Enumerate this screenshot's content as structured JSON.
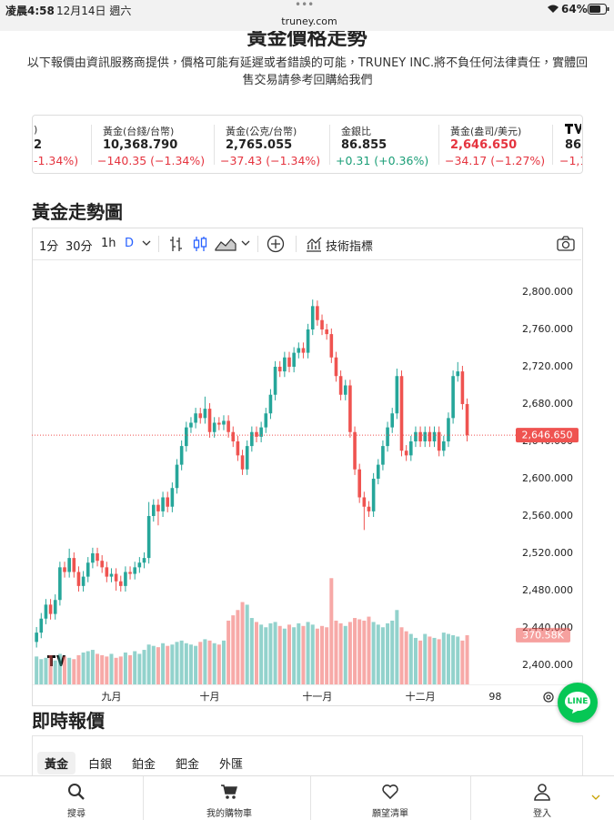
{
  "status_bar": {
    "time": "凌晨4:58",
    "date": "12月14日 週六",
    "url": "truney.com",
    "battery": "64%"
  },
  "header": {
    "title": "黃金價格走勢",
    "disclaimer": "以下報價由資訊服務商提供，價格可能有延遲或者錯誤的可能，TRUNEY INC.將不負任何法律責任，實體回售交易請參考回購給我們"
  },
  "ticker": [
    {
      "name": ")",
      "price": "2",
      "change": "-1.34%)"
    },
    {
      "name": "黃金(台錢/台幣)",
      "price": "10,368.790",
      "change": "−140.35 (−1.34%)"
    },
    {
      "name": "黃金(公克/台幣)",
      "price": "2,765.055",
      "change": "−37.43 (−1.34%)"
    },
    {
      "name": "金銀比",
      "price": "86.855",
      "change": "+0.31 (+0.36%)"
    },
    {
      "name": "黃金(盎司/美元)",
      "price": "2,646.650",
      "change": "−34.17 (−1.27%)"
    },
    {
      "price": "86",
      "change": "−1,1"
    }
  ],
  "chart_section_title": "黃金走勢圖",
  "toolbar": {
    "intervals": [
      "1分",
      "30分",
      "1h",
      "D"
    ],
    "indicators": "技術指標"
  },
  "chart_data": {
    "type": "candlestick",
    "up_color": "#26a69a",
    "down_color": "#ef5350",
    "open": [
      2425,
      2435,
      2450,
      2465,
      2455,
      2470,
      2505,
      2500,
      2515,
      2500,
      2485,
      2495,
      2510,
      2520,
      2512,
      2505,
      2495,
      2498,
      2490,
      2485,
      2500,
      2498,
      2505,
      2510,
      2515,
      2560,
      2572,
      2565,
      2580,
      2570,
      2590,
      2615,
      2635,
      2655,
      2660,
      2670,
      2665,
      2675,
      2650,
      2660,
      2658,
      2662,
      2650,
      2640,
      2625,
      2610,
      2635,
      2650,
      2645,
      2655,
      2670,
      2690,
      2720,
      2715,
      2730,
      2720,
      2735,
      2740,
      2735,
      2760,
      2785,
      2770,
      2760,
      2755,
      2730,
      2710,
      2690,
      2700,
      2650,
      2610,
      2580,
      2570,
      2565,
      2600,
      2615,
      2635,
      2655,
      2670,
      2710,
      2630,
      2625,
      2640,
      2650,
      2640,
      2650,
      2640,
      2650,
      2630,
      2640,
      2665,
      2710,
      2715,
      2680
    ],
    "high": [
      2441,
      2456,
      2471,
      2471,
      2476,
      2511,
      2511,
      2525,
      2521,
      2506,
      2501,
      2516,
      2526,
      2526,
      2518,
      2511,
      2504,
      2504,
      2496,
      2506,
      2506,
      2511,
      2516,
      2521,
      2575,
      2578,
      2578,
      2586,
      2586,
      2596,
      2621,
      2641,
      2661,
      2666,
      2676,
      2676,
      2688,
      2681,
      2666,
      2666,
      2668,
      2668,
      2656,
      2646,
      2631,
      2641,
      2656,
      2656,
      2661,
      2676,
      2696,
      2726,
      2726,
      2736,
      2736,
      2741,
      2746,
      2746,
      2766,
      2792,
      2791,
      2776,
      2766,
      2761,
      2736,
      2716,
      2706,
      2706,
      2656,
      2616,
      2586,
      2576,
      2606,
      2621,
      2641,
      2661,
      2676,
      2718,
      2716,
      2636,
      2646,
      2656,
      2656,
      2656,
      2656,
      2656,
      2656,
      2646,
      2671,
      2716,
      2725,
      2721,
      2686
    ],
    "low": [
      2419,
      2429,
      2444,
      2449,
      2449,
      2464,
      2494,
      2494,
      2494,
      2479,
      2479,
      2489,
      2504,
      2506,
      2499,
      2489,
      2489,
      2480,
      2479,
      2479,
      2492,
      2492,
      2499,
      2504,
      2509,
      2554,
      2550,
      2559,
      2564,
      2564,
      2584,
      2609,
      2629,
      2649,
      2654,
      2659,
      2659,
      2644,
      2644,
      2652,
      2652,
      2644,
      2634,
      2619,
      2604,
      2604,
      2629,
      2639,
      2639,
      2649,
      2664,
      2684,
      2709,
      2709,
      2714,
      2714,
      2729,
      2729,
      2729,
      2754,
      2764,
      2754,
      2749,
      2724,
      2704,
      2684,
      2684,
      2644,
      2604,
      2574,
      2545,
      2559,
      2559,
      2594,
      2609,
      2629,
      2649,
      2664,
      2624,
      2619,
      2619,
      2634,
      2634,
      2634,
      2634,
      2634,
      2624,
      2624,
      2634,
      2659,
      2704,
      2674,
      2640
    ],
    "close": [
      2435,
      2450,
      2465,
      2455,
      2470,
      2505,
      2500,
      2515,
      2500,
      2485,
      2495,
      2510,
      2520,
      2512,
      2505,
      2495,
      2498,
      2490,
      2485,
      2500,
      2498,
      2505,
      2510,
      2515,
      2560,
      2572,
      2565,
      2580,
      2570,
      2590,
      2615,
      2635,
      2655,
      2660,
      2670,
      2665,
      2675,
      2650,
      2660,
      2658,
      2662,
      2650,
      2640,
      2625,
      2610,
      2635,
      2650,
      2645,
      2655,
      2670,
      2690,
      2720,
      2715,
      2730,
      2720,
      2735,
      2740,
      2735,
      2760,
      2785,
      2770,
      2760,
      2755,
      2730,
      2710,
      2690,
      2700,
      2650,
      2610,
      2580,
      2570,
      2565,
      2600,
      2615,
      2635,
      2655,
      2670,
      2710,
      2630,
      2625,
      2640,
      2650,
      2640,
      2650,
      2640,
      2650,
      2630,
      2640,
      2665,
      2710,
      2715,
      2680,
      2646.65
    ],
    "volume": [
      210000,
      190000,
      200000,
      220000,
      180000,
      230000,
      210000,
      200000,
      190000,
      220000,
      240000,
      250000,
      260000,
      230000,
      220000,
      210000,
      230000,
      200000,
      210000,
      240000,
      220000,
      250000,
      230000,
      260000,
      300000,
      290000,
      280000,
      310000,
      290000,
      300000,
      320000,
      330000,
      310000,
      300000,
      290000,
      320000,
      340000,
      330000,
      310000,
      300000,
      330000,
      480000,
      520000,
      560000,
      620000,
      600000,
      500000,
      470000,
      450000,
      430000,
      460000,
      470000,
      440000,
      420000,
      450000,
      430000,
      460000,
      440000,
      470000,
      450000,
      420000,
      440000,
      430000,
      800000,
      480000,
      460000,
      440000,
      470000,
      500000,
      490000,
      480000,
      510000,
      470000,
      450000,
      430000,
      460000,
      480000,
      560000,
      430000,
      400000,
      380000,
      350000,
      330000,
      380000,
      360000,
      350000,
      340000,
      390000,
      380000,
      370000,
      360000,
      330000,
      370580
    ],
    "price_label": "2,646.650",
    "volume_label": "370.58K",
    "xlim": [
      -1,
      102
    ],
    "xticks": [
      {
        "value": 16,
        "label": "九月"
      },
      {
        "value": 37,
        "label": "十月"
      },
      {
        "value": 60,
        "label": "十一月"
      },
      {
        "value": 82,
        "label": "十二月"
      },
      98
    ],
    "ylim": [
      2379.5,
      2835.1
    ],
    "yticks": [
      {
        "value": 2400,
        "label": "2,400.000"
      },
      {
        "value": 2440,
        "label": "2,440.000"
      },
      {
        "value": 2480,
        "label": "2,480.000"
      },
      {
        "value": 2520,
        "label": "2,520.000"
      },
      {
        "value": 2560,
        "label": "2,560.000"
      },
      {
        "value": 2600,
        "label": "2,600.000"
      },
      {
        "value": 2640,
        "label": "2,640.000"
      },
      {
        "value": 2680,
        "label": "2,680.000"
      },
      {
        "value": 2720,
        "label": "2,720.000"
      },
      {
        "value": 2760,
        "label": "2,760.000"
      },
      {
        "value": 2800,
        "label": "2,800.000"
      }
    ],
    "volume_lim": [
      0,
      1350000
    ],
    "grid": false
  },
  "quotes": {
    "title": "即時報價",
    "tabs": [
      "黃金",
      "白銀",
      "鉑金",
      "鈀金",
      "外匯"
    ]
  },
  "nav": [
    "搜尋",
    "我的購物車",
    "願望清單",
    "登入"
  ],
  "line_button": "LINE"
}
